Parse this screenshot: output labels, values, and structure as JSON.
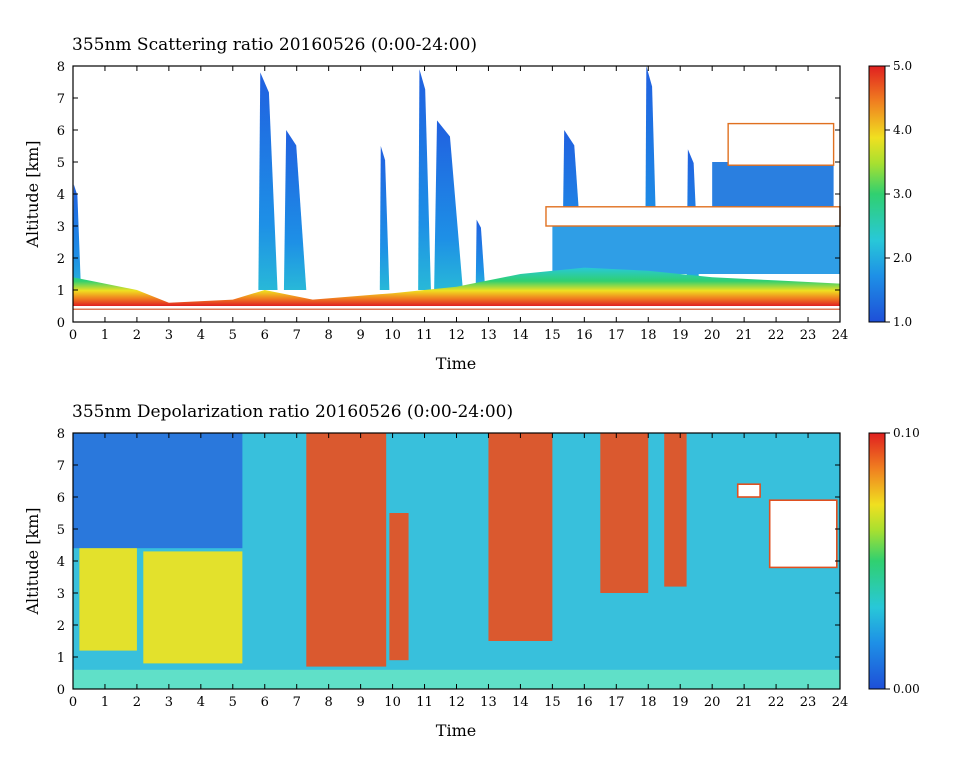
{
  "chart_data": [
    {
      "type": "heatmap",
      "title": "355nm Scattering ratio  20160526 (0:00-24:00)",
      "xlabel": "Time",
      "ylabel": "Altitude [km]",
      "xlim": [
        0,
        24
      ],
      "ylim": [
        0,
        8
      ],
      "xticks": [
        "0",
        "1",
        "2",
        "3",
        "4",
        "5",
        "6",
        "7",
        "8",
        "9",
        "10",
        "11",
        "12",
        "13",
        "14",
        "15",
        "16",
        "17",
        "18",
        "19",
        "20",
        "21",
        "22",
        "23",
        "24"
      ],
      "yticks": [
        "0",
        "1",
        "2",
        "3",
        "4",
        "5",
        "6",
        "7",
        "8"
      ],
      "colorbar": {
        "min": 1.0,
        "max": 5.0,
        "labels": [
          "1.0",
          "2.0",
          "3.0",
          "4.0",
          "5.0"
        ]
      },
      "ground_line_km": 0.4,
      "boundary_layer_top_km": [
        {
          "time": 0,
          "value": 1.4
        },
        {
          "time": 2,
          "value": 1.0
        },
        {
          "time": 3,
          "value": 0.6
        },
        {
          "time": 5,
          "value": 0.7
        },
        {
          "time": 6,
          "value": 1.0
        },
        {
          "time": 7.5,
          "value": 0.7
        },
        {
          "time": 10,
          "value": 0.9
        },
        {
          "time": 12,
          "value": 1.1
        },
        {
          "time": 14,
          "value": 1.5
        },
        {
          "time": 16,
          "value": 1.7
        },
        {
          "time": 18,
          "value": 1.6
        },
        {
          "time": 20,
          "value": 1.4
        },
        {
          "time": 22,
          "value": 1.3
        },
        {
          "time": 24,
          "value": 1.2
        }
      ],
      "aerosol_columns": [
        {
          "start": 0,
          "end": 0.25,
          "top_km": 4.3
        },
        {
          "start": 5.8,
          "end": 6.4,
          "top_km": 7.8
        },
        {
          "start": 6.6,
          "end": 7.3,
          "top_km": 6.0
        },
        {
          "start": 9.6,
          "end": 9.9,
          "top_km": 5.5
        },
        {
          "start": 10.8,
          "end": 11.2,
          "top_km": 7.9
        },
        {
          "start": 11.3,
          "end": 12.2,
          "top_km": 6.3
        },
        {
          "start": 12.6,
          "end": 12.9,
          "top_km": 3.2
        },
        {
          "start": 15.3,
          "end": 16.0,
          "top_km": 6.0
        },
        {
          "start": 17.9,
          "end": 18.3,
          "top_km": 8.0
        },
        {
          "start": 19.2,
          "end": 19.6,
          "top_km": 5.4
        }
      ],
      "cloud_layers": [
        {
          "start": 14.8,
          "end": 24,
          "base_km": 3.0,
          "top_km": 3.6
        },
        {
          "start": 20.5,
          "end": 23.8,
          "base_km": 4.9,
          "top_km": 6.2
        }
      ]
    },
    {
      "type": "heatmap",
      "title": "355nm Depolarization ratio  20160526 (0:00-24:00)",
      "xlabel": "Time",
      "ylabel": "Altitude [km]",
      "xlim": [
        0,
        24
      ],
      "ylim": [
        0,
        8
      ],
      "xticks": [
        "0",
        "1",
        "2",
        "3",
        "4",
        "5",
        "6",
        "7",
        "8",
        "9",
        "10",
        "11",
        "12",
        "13",
        "14",
        "15",
        "16",
        "17",
        "18",
        "19",
        "20",
        "21",
        "22",
        "23",
        "24"
      ],
      "yticks": [
        "0",
        "1",
        "2",
        "3",
        "4",
        "5",
        "6",
        "7",
        "8"
      ],
      "colorbar": {
        "min": 0.0,
        "max": 0.1,
        "labels": [
          "0.00",
          "0.10"
        ]
      },
      "high_depol_regions": [
        {
          "start": 0.2,
          "end": 2.0,
          "base_km": 1.2,
          "top_km": 4.4,
          "level": "yellow"
        },
        {
          "start": 2.2,
          "end": 5.3,
          "base_km": 0.8,
          "top_km": 4.3,
          "level": "yellow"
        },
        {
          "start": 7.3,
          "end": 9.8,
          "base_km": 0.7,
          "top_km": 8.0,
          "level": "red"
        },
        {
          "start": 9.9,
          "end": 10.5,
          "base_km": 0.9,
          "top_km": 5.5,
          "level": "red"
        },
        {
          "start": 13.0,
          "end": 15.0,
          "base_km": 1.5,
          "top_km": 8.0,
          "level": "red"
        },
        {
          "start": 16.5,
          "end": 18.0,
          "base_km": 3.0,
          "top_km": 8.0,
          "level": "red"
        },
        {
          "start": 18.5,
          "end": 19.2,
          "base_km": 3.2,
          "top_km": 8.0,
          "level": "red"
        }
      ],
      "cloud_layers": [
        {
          "start": 20.8,
          "end": 21.5,
          "base_km": 6.0,
          "top_km": 6.4
        },
        {
          "start": 21.8,
          "end": 23.9,
          "base_km": 3.8,
          "top_km": 5.9
        }
      ]
    }
  ]
}
